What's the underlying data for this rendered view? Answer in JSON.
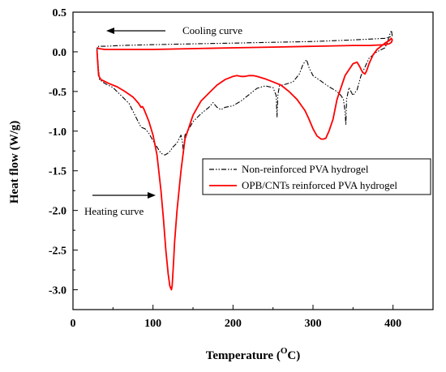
{
  "chart_data": {
    "type": "line",
    "xlabel_main": "Temperature (",
    "xlabel_sup": "O",
    "xlabel_end": "C)",
    "ylabel": "Heat flow (W/g)",
    "xlim": [
      0,
      450
    ],
    "ylim": [
      -3.25,
      0.5
    ],
    "x_ticks": [
      0,
      100,
      200,
      300,
      400
    ],
    "x_tick_labels": [
      "0",
      "100",
      "200",
      "300",
      "400"
    ],
    "y_ticks": [
      0.5,
      0.0,
      -0.5,
      -1.0,
      -1.5,
      -2.0,
      -2.5,
      -3.0
    ],
    "y_tick_labels": [
      "0.5",
      "0.0",
      "-0.5",
      "-1.0",
      "-1.5",
      "-2.0",
      "-2.5",
      "-3.0"
    ],
    "legend": {
      "placement": "center-right",
      "entries": [
        "Non-reinforced PVA hydrogel",
        "OPB/CNTs reinforced PVA hydrogel"
      ]
    },
    "annotations": {
      "cooling": "Cooling curve",
      "heating": "Heating curve"
    },
    "series": [
      {
        "name": "Non-reinforced PVA hydrogel",
        "color": "#000000",
        "style": "dash-dot-dot",
        "x": [
          30,
          31,
          33,
          40,
          50,
          60,
          70,
          80,
          85,
          90,
          95,
          100,
          105,
          110,
          115,
          120,
          125,
          130,
          135,
          137,
          138,
          139,
          140,
          145,
          150,
          160,
          170,
          175,
          180,
          185,
          190,
          200,
          210,
          220,
          230,
          240,
          250,
          254,
          255,
          256,
          258,
          265,
          275,
          283,
          287,
          290,
          292,
          295,
          300,
          310,
          320,
          330,
          335,
          338,
          340,
          341,
          342,
          345,
          350,
          355,
          360,
          370,
          380,
          390,
          393,
          396,
          398,
          399,
          397,
          390,
          370,
          350,
          300,
          250,
          200,
          150,
          100,
          60,
          40,
          35,
          32,
          31
        ],
        "y": [
          0.05,
          -0.1,
          -0.35,
          -0.4,
          -0.45,
          -0.55,
          -0.65,
          -0.85,
          -0.95,
          -0.97,
          -1.03,
          -1.12,
          -1.2,
          -1.28,
          -1.3,
          -1.27,
          -1.2,
          -1.15,
          -1.05,
          -1.15,
          -1.28,
          -1.15,
          -1.05,
          -0.97,
          -0.88,
          -0.78,
          -0.7,
          -0.64,
          -0.7,
          -0.73,
          -0.7,
          -0.68,
          -0.62,
          -0.54,
          -0.46,
          -0.43,
          -0.45,
          -0.55,
          -0.82,
          -0.55,
          -0.43,
          -0.41,
          -0.38,
          -0.28,
          -0.17,
          -0.12,
          -0.1,
          -0.2,
          -0.3,
          -0.37,
          -0.44,
          -0.5,
          -0.55,
          -0.6,
          -0.75,
          -0.92,
          -0.6,
          -0.45,
          -0.55,
          -0.48,
          -0.3,
          -0.08,
          0.0,
          0.05,
          0.12,
          0.22,
          0.27,
          0.2,
          0.19,
          0.17,
          0.16,
          0.15,
          0.13,
          0.12,
          0.11,
          0.1,
          0.09,
          0.08,
          0.07,
          0.07,
          0.07,
          0.05
        ]
      },
      {
        "name": "OPB/CNTs reinforced PVA hydrogel",
        "color": "#ff0000",
        "style": "solid",
        "x": [
          30,
          31,
          32,
          35,
          45,
          55,
          65,
          75,
          82,
          85,
          87,
          88,
          89,
          91,
          95,
          100,
          105,
          110,
          113,
          116,
          119,
          121,
          123,
          124,
          125,
          126,
          127,
          130,
          135,
          140,
          150,
          160,
          170,
          180,
          190,
          200,
          205,
          210,
          215,
          220,
          225,
          230,
          240,
          250,
          260,
          270,
          280,
          290,
          295,
          300,
          305,
          310,
          313,
          316,
          320,
          325,
          330,
          340,
          350,
          355,
          358,
          362,
          365,
          367,
          370,
          375,
          380,
          385,
          390,
          395,
          398,
          399,
          398,
          395,
          390,
          370,
          350,
          300,
          250,
          200,
          150,
          100,
          60,
          40,
          32,
          31,
          30
        ],
        "y": [
          0.02,
          -0.15,
          -0.3,
          -0.35,
          -0.4,
          -0.44,
          -0.5,
          -0.57,
          -0.65,
          -0.7,
          -0.69,
          -0.71,
          -0.73,
          -0.78,
          -0.88,
          -1.05,
          -1.3,
          -1.75,
          -2.1,
          -2.5,
          -2.8,
          -2.95,
          -3.0,
          -2.95,
          -2.78,
          -2.6,
          -2.4,
          -2.0,
          -1.5,
          -1.1,
          -0.8,
          -0.62,
          -0.52,
          -0.42,
          -0.35,
          -0.31,
          -0.3,
          -0.31,
          -0.31,
          -0.3,
          -0.3,
          -0.31,
          -0.34,
          -0.38,
          -0.42,
          -0.5,
          -0.6,
          -0.74,
          -0.85,
          -0.97,
          -1.06,
          -1.1,
          -1.1,
          -1.09,
          -1.0,
          -0.85,
          -0.6,
          -0.3,
          -0.15,
          -0.13,
          -0.18,
          -0.26,
          -0.28,
          -0.24,
          -0.15,
          -0.04,
          0.03,
          0.07,
          0.11,
          0.14,
          0.17,
          0.15,
          0.12,
          0.1,
          0.09,
          0.08,
          0.08,
          0.07,
          0.06,
          0.05,
          0.04,
          0.03,
          0.03,
          0.03,
          0.04,
          0.05,
          0.05
        ]
      }
    ]
  }
}
